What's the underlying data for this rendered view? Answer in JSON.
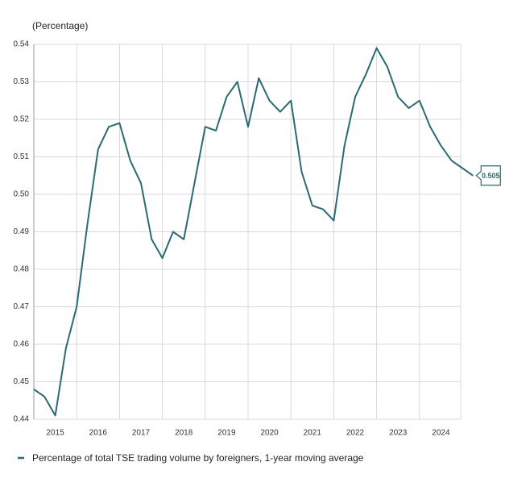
{
  "chart_data": {
    "type": "line",
    "y_label": "(Percentage)",
    "categories": [
      null,
      null,
      "2015",
      null,
      null,
      null,
      "2016",
      null,
      null,
      null,
      "2017",
      null,
      null,
      null,
      "2018",
      null,
      null,
      null,
      "2019",
      null,
      null,
      null,
      "2020",
      null,
      null,
      null,
      "2021",
      null,
      null,
      null,
      "2022",
      null,
      null,
      null,
      "2023",
      null,
      null,
      null,
      "2024",
      null,
      null,
      null
    ],
    "series": [
      {
        "name": "Percentage of total TSE trading volume by foreigners, 1-year moving average",
        "color": "#2a6a73",
        "values": [
          0.448,
          0.446,
          0.441,
          0.459,
          0.47,
          0.492,
          0.512,
          0.518,
          0.519,
          0.509,
          0.503,
          0.488,
          0.483,
          0.49,
          0.488,
          0.503,
          0.518,
          0.517,
          0.526,
          0.53,
          0.518,
          0.531,
          0.525,
          0.522,
          0.525,
          0.506,
          0.497,
          0.496,
          0.493,
          0.513,
          0.526,
          0.532,
          0.539,
          0.534,
          0.526,
          0.523,
          0.525,
          0.518,
          0.513,
          0.509,
          0.507,
          0.505
        ],
        "value_labels": [
          null,
          null,
          null,
          null,
          null,
          null,
          null,
          null,
          null,
          null,
          null,
          null,
          null,
          null,
          null,
          null,
          null,
          null,
          null,
          null,
          null,
          null,
          null,
          null,
          null,
          null,
          null,
          null,
          null,
          null,
          null,
          null,
          null,
          null,
          null,
          null,
          null,
          null,
          null,
          null,
          null,
          "0.505"
        ]
      }
    ],
    "ylim": [
      0.44,
      0.54
    ],
    "yticks": [
      0.44,
      0.45,
      0.46,
      0.47,
      0.48,
      0.49,
      {
        "value": 0.5,
        "label": "0.50"
      },
      0.51,
      0.52,
      0.53,
      0.54
    ],
    "grid": true,
    "legend": "bottom"
  }
}
